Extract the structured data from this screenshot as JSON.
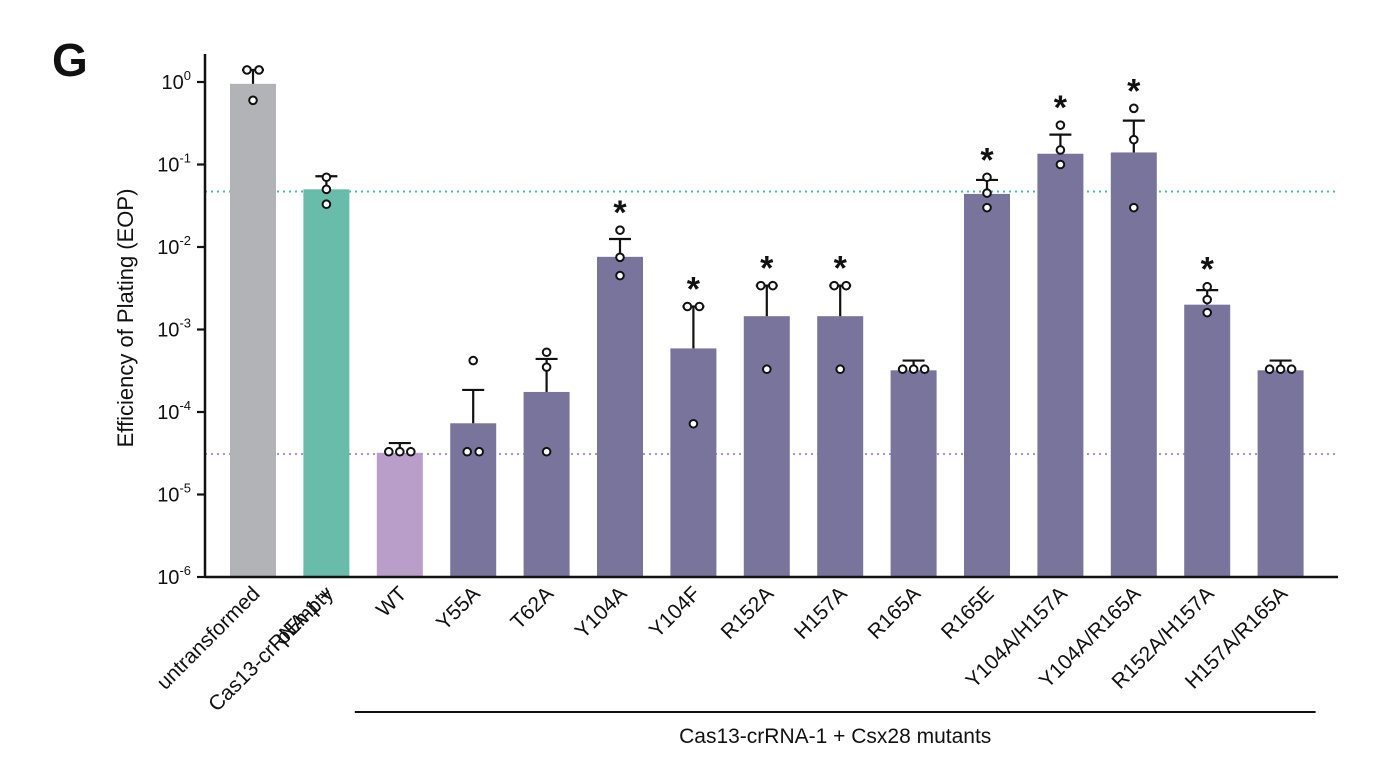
{
  "panel_label": "G",
  "colors": {
    "untransformed": "#b1b3b6",
    "pEmpty": "#69bca9",
    "wt": "#b89ec9",
    "mutant": "#79749c",
    "ref_green": "#58b6a0",
    "ref_purple": "#b290cc",
    "axis": "#111111"
  },
  "chart_data": {
    "type": "bar",
    "ylabel": "Efficiency of Plating (EOP)",
    "yscale": "log",
    "ylim": [
      1e-06,
      2
    ],
    "yticks": [
      {
        "base": "10",
        "exp": "0",
        "value": 1
      },
      {
        "base": "10",
        "exp": "-1",
        "value": 0.1
      },
      {
        "base": "10",
        "exp": "-2",
        "value": 0.01
      },
      {
        "base": "10",
        "exp": "-3",
        "value": 0.001
      },
      {
        "base": "10",
        "exp": "-4",
        "value": 0.0001
      },
      {
        "base": "10",
        "exp": "-5",
        "value": 1e-05
      },
      {
        "base": "10",
        "exp": "-6",
        "value": 1e-06
      }
    ],
    "categories": [
      {
        "lines": [
          "untransformed"
        ],
        "value": 0.95,
        "error_top": 1.4,
        "points": [
          1.4,
          1.4,
          0.6
        ],
        "significant": false,
        "color_key": "untransformed"
      },
      {
        "lines": [
          "Cas13-crRNA-1 +",
          "pEmpty"
        ],
        "value": 0.05,
        "error_top": 0.072,
        "points": [
          0.07,
          0.05,
          0.033
        ],
        "significant": false,
        "color_key": "pEmpty"
      },
      {
        "lines": [
          "WT"
        ],
        "value": 3.2e-05,
        "error_top": 4.2e-05,
        "points": [
          3.3e-05,
          3.3e-05,
          3.3e-05
        ],
        "significant": false,
        "color_key": "wt"
      },
      {
        "lines": [
          "Y55A"
        ],
        "value": 7.3e-05,
        "error_top": 0.000185,
        "points": [
          0.00042,
          3.3e-05,
          3.3e-05
        ],
        "significant": false,
        "color_key": "mutant"
      },
      {
        "lines": [
          "T62A"
        ],
        "value": 0.000175,
        "error_top": 0.00044,
        "points": [
          0.00053,
          0.00035,
          3.3e-05
        ],
        "significant": false,
        "color_key": "mutant"
      },
      {
        "lines": [
          "Y104A"
        ],
        "value": 0.0076,
        "error_top": 0.0125,
        "points": [
          0.016,
          0.0075,
          0.0045
        ],
        "significant": true,
        "color_key": "mutant"
      },
      {
        "lines": [
          "Y104F"
        ],
        "value": 0.00059,
        "error_top": 0.0019,
        "points": [
          0.0019,
          0.0019,
          7.2e-05
        ],
        "significant": true,
        "color_key": "mutant"
      },
      {
        "lines": [
          "R152A"
        ],
        "value": 0.00145,
        "error_top": 0.0034,
        "points": [
          0.0034,
          0.0034,
          0.00033
        ],
        "significant": true,
        "color_key": "mutant"
      },
      {
        "lines": [
          "H157A"
        ],
        "value": 0.00145,
        "error_top": 0.0034,
        "points": [
          0.0034,
          0.0034,
          0.00033
        ],
        "significant": true,
        "color_key": "mutant"
      },
      {
        "lines": [
          "R165A"
        ],
        "value": 0.00032,
        "error_top": 0.00042,
        "points": [
          0.00033,
          0.00033,
          0.00033
        ],
        "significant": false,
        "color_key": "mutant"
      },
      {
        "lines": [
          "R165E"
        ],
        "value": 0.044,
        "error_top": 0.065,
        "points": [
          0.07,
          0.045,
          0.03
        ],
        "significant": true,
        "color_key": "mutant"
      },
      {
        "lines": [
          "Y104A/H157A"
        ],
        "value": 0.135,
        "error_top": 0.23,
        "points": [
          0.3,
          0.15,
          0.1
        ],
        "significant": true,
        "color_key": "mutant"
      },
      {
        "lines": [
          "Y104A/R165A"
        ],
        "value": 0.14,
        "error_top": 0.34,
        "points": [
          0.48,
          0.2,
          0.03
        ],
        "significant": true,
        "color_key": "mutant"
      },
      {
        "lines": [
          "R152A/H157A"
        ],
        "value": 0.002,
        "error_top": 0.003,
        "points": [
          0.0033,
          0.0023,
          0.0016
        ],
        "significant": true,
        "color_key": "mutant"
      },
      {
        "lines": [
          "H157A/R165A"
        ],
        "value": 0.00032,
        "error_top": 0.00042,
        "points": [
          0.00033,
          0.00033,
          0.00033
        ],
        "significant": false,
        "color_key": "mutant"
      }
    ],
    "reference_lines": [
      {
        "value": 0.047,
        "color_key": "ref_green",
        "style": "dotted"
      },
      {
        "value": 3.1e-05,
        "color_key": "ref_purple",
        "style": "dotted"
      }
    ],
    "significance_marker": "*",
    "group_label": "Cas13-crRNA-1 + Csx28 mutants",
    "group_span": [
      2,
      14
    ]
  }
}
